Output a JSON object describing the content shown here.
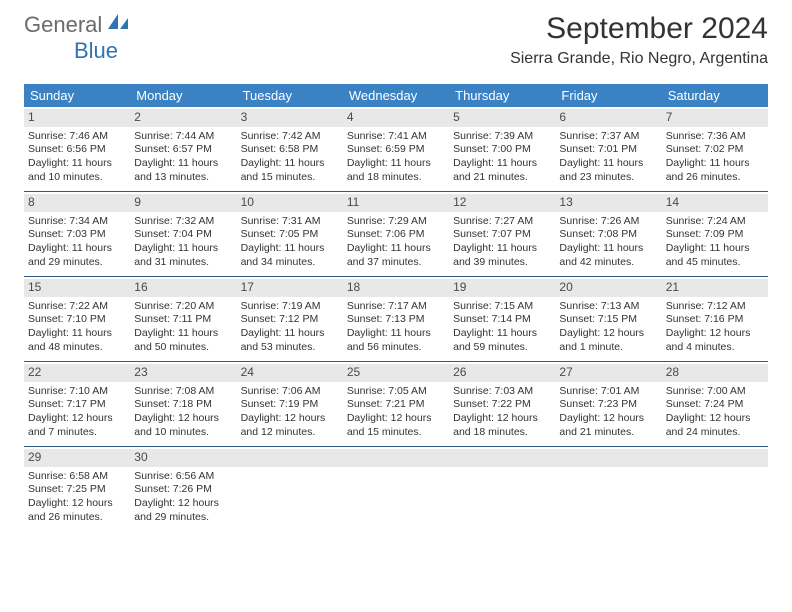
{
  "logo": {
    "text_gray": "General",
    "text_blue": "Blue"
  },
  "title": "September 2024",
  "subtitle": "Sierra Grande, Rio Negro, Argentina",
  "colors": {
    "header_bg": "#3b82c4",
    "header_text": "#ffffff",
    "daynum_bg": "#e8e8e8",
    "border": "#2f5a84",
    "logo_gray": "#6b6b6b",
    "logo_blue": "#2f73b5",
    "body_text": "#333333"
  },
  "days_of_week": [
    "Sunday",
    "Monday",
    "Tuesday",
    "Wednesday",
    "Thursday",
    "Friday",
    "Saturday"
  ],
  "weeks": [
    [
      {
        "n": "1",
        "sunrise": "7:46 AM",
        "sunset": "6:56 PM",
        "daylight": "11 hours and 10 minutes."
      },
      {
        "n": "2",
        "sunrise": "7:44 AM",
        "sunset": "6:57 PM",
        "daylight": "11 hours and 13 minutes."
      },
      {
        "n": "3",
        "sunrise": "7:42 AM",
        "sunset": "6:58 PM",
        "daylight": "11 hours and 15 minutes."
      },
      {
        "n": "4",
        "sunrise": "7:41 AM",
        "sunset": "6:59 PM",
        "daylight": "11 hours and 18 minutes."
      },
      {
        "n": "5",
        "sunrise": "7:39 AM",
        "sunset": "7:00 PM",
        "daylight": "11 hours and 21 minutes."
      },
      {
        "n": "6",
        "sunrise": "7:37 AM",
        "sunset": "7:01 PM",
        "daylight": "11 hours and 23 minutes."
      },
      {
        "n": "7",
        "sunrise": "7:36 AM",
        "sunset": "7:02 PM",
        "daylight": "11 hours and 26 minutes."
      }
    ],
    [
      {
        "n": "8",
        "sunrise": "7:34 AM",
        "sunset": "7:03 PM",
        "daylight": "11 hours and 29 minutes."
      },
      {
        "n": "9",
        "sunrise": "7:32 AM",
        "sunset": "7:04 PM",
        "daylight": "11 hours and 31 minutes."
      },
      {
        "n": "10",
        "sunrise": "7:31 AM",
        "sunset": "7:05 PM",
        "daylight": "11 hours and 34 minutes."
      },
      {
        "n": "11",
        "sunrise": "7:29 AM",
        "sunset": "7:06 PM",
        "daylight": "11 hours and 37 minutes."
      },
      {
        "n": "12",
        "sunrise": "7:27 AM",
        "sunset": "7:07 PM",
        "daylight": "11 hours and 39 minutes."
      },
      {
        "n": "13",
        "sunrise": "7:26 AM",
        "sunset": "7:08 PM",
        "daylight": "11 hours and 42 minutes."
      },
      {
        "n": "14",
        "sunrise": "7:24 AM",
        "sunset": "7:09 PM",
        "daylight": "11 hours and 45 minutes."
      }
    ],
    [
      {
        "n": "15",
        "sunrise": "7:22 AM",
        "sunset": "7:10 PM",
        "daylight": "11 hours and 48 minutes."
      },
      {
        "n": "16",
        "sunrise": "7:20 AM",
        "sunset": "7:11 PM",
        "daylight": "11 hours and 50 minutes."
      },
      {
        "n": "17",
        "sunrise": "7:19 AM",
        "sunset": "7:12 PM",
        "daylight": "11 hours and 53 minutes."
      },
      {
        "n": "18",
        "sunrise": "7:17 AM",
        "sunset": "7:13 PM",
        "daylight": "11 hours and 56 minutes."
      },
      {
        "n": "19",
        "sunrise": "7:15 AM",
        "sunset": "7:14 PM",
        "daylight": "11 hours and 59 minutes."
      },
      {
        "n": "20",
        "sunrise": "7:13 AM",
        "sunset": "7:15 PM",
        "daylight": "12 hours and 1 minute."
      },
      {
        "n": "21",
        "sunrise": "7:12 AM",
        "sunset": "7:16 PM",
        "daylight": "12 hours and 4 minutes."
      }
    ],
    [
      {
        "n": "22",
        "sunrise": "7:10 AM",
        "sunset": "7:17 PM",
        "daylight": "12 hours and 7 minutes."
      },
      {
        "n": "23",
        "sunrise": "7:08 AM",
        "sunset": "7:18 PM",
        "daylight": "12 hours and 10 minutes."
      },
      {
        "n": "24",
        "sunrise": "7:06 AM",
        "sunset": "7:19 PM",
        "daylight": "12 hours and 12 minutes."
      },
      {
        "n": "25",
        "sunrise": "7:05 AM",
        "sunset": "7:21 PM",
        "daylight": "12 hours and 15 minutes."
      },
      {
        "n": "26",
        "sunrise": "7:03 AM",
        "sunset": "7:22 PM",
        "daylight": "12 hours and 18 minutes."
      },
      {
        "n": "27",
        "sunrise": "7:01 AM",
        "sunset": "7:23 PM",
        "daylight": "12 hours and 21 minutes."
      },
      {
        "n": "28",
        "sunrise": "7:00 AM",
        "sunset": "7:24 PM",
        "daylight": "12 hours and 24 minutes."
      }
    ],
    [
      {
        "n": "29",
        "sunrise": "6:58 AM",
        "sunset": "7:25 PM",
        "daylight": "12 hours and 26 minutes."
      },
      {
        "n": "30",
        "sunrise": "6:56 AM",
        "sunset": "7:26 PM",
        "daylight": "12 hours and 29 minutes."
      },
      {
        "empty": true
      },
      {
        "empty": true
      },
      {
        "empty": true
      },
      {
        "empty": true
      },
      {
        "empty": true
      }
    ]
  ]
}
